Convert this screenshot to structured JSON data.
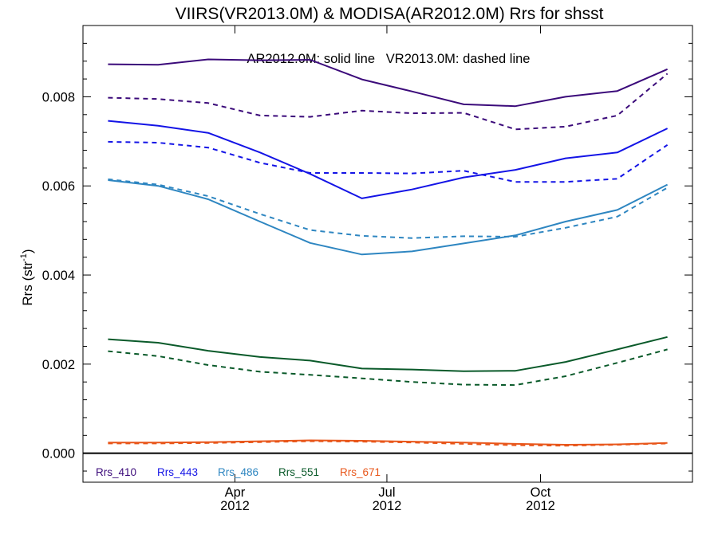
{
  "chart_data": {
    "type": "line",
    "title": "VIIRS(VR2013.0M) & MODISA(AR2012.0M)  Rrs for shsst",
    "annotation": "AR2012.0M: solid line   VR2013.0M: dashed line",
    "ylabel": "Rrs (str",
    "ylabel_sup": "-1",
    "ylabel_close": ")",
    "ylim": [
      -0.00065,
      0.0096
    ],
    "yticks": [
      {
        "value": 0.0,
        "label": "0.000"
      },
      {
        "value": 0.002,
        "label": "0.002"
      },
      {
        "value": 0.004,
        "label": "0.004"
      },
      {
        "value": 0.006,
        "label": "0.006"
      },
      {
        "value": 0.008,
        "label": "0.008"
      }
    ],
    "xlim": [
      "2012-01-01",
      "2012-12-31"
    ],
    "x": [
      "2012-01-16",
      "2012-02-15",
      "2012-03-16",
      "2012-04-16",
      "2012-05-16",
      "2012-06-16",
      "2012-07-16",
      "2012-08-16",
      "2012-09-16",
      "2012-10-16",
      "2012-11-16",
      "2012-12-16"
    ],
    "xticks": [
      {
        "date": "2012-04-01",
        "month": "Apr",
        "year": "2012"
      },
      {
        "date": "2012-07-01",
        "month": "Jul",
        "year": "2012"
      },
      {
        "date": "2012-10-01",
        "month": "Oct",
        "year": "2012"
      }
    ],
    "series": [
      {
        "name": "Rrs_410",
        "sensor": "AR2012.0M",
        "style": "solid",
        "color": "#3b0a7a",
        "values": [
          0.00873,
          0.00872,
          0.00884,
          0.00882,
          0.00883,
          0.00839,
          0.00812,
          0.00783,
          0.00779,
          0.008,
          0.00813,
          0.00862
        ]
      },
      {
        "name": "Rrs_410",
        "sensor": "VR2013.0M",
        "style": "dashed",
        "color": "#3b0a7a",
        "values": [
          0.00798,
          0.00795,
          0.00786,
          0.00758,
          0.00755,
          0.00769,
          0.00763,
          0.00764,
          0.00727,
          0.00733,
          0.00758,
          0.00852
        ]
      },
      {
        "name": "Rrs_443",
        "sensor": "AR2012.0M",
        "style": "solid",
        "color": "#1414e6",
        "values": [
          0.00746,
          0.00735,
          0.00719,
          0.00675,
          0.00627,
          0.00572,
          0.00592,
          0.00619,
          0.00636,
          0.00662,
          0.00675,
          0.00729
        ]
      },
      {
        "name": "Rrs_443",
        "sensor": "VR2013.0M",
        "style": "dashed",
        "color": "#1414e6",
        "values": [
          0.00699,
          0.00697,
          0.00686,
          0.00652,
          0.00629,
          0.00629,
          0.00628,
          0.00634,
          0.00609,
          0.00609,
          0.00616,
          0.00692
        ]
      },
      {
        "name": "Rrs_486",
        "sensor": "AR2012.0M",
        "style": "solid",
        "color": "#2e86c1",
        "values": [
          0.00613,
          0.006,
          0.0057,
          0.0052,
          0.00472,
          0.00446,
          0.00453,
          0.00471,
          0.00489,
          0.0052,
          0.00546,
          0.00603
        ]
      },
      {
        "name": "Rrs_486",
        "sensor": "VR2013.0M",
        "style": "dashed",
        "color": "#2e86c1",
        "values": [
          0.00615,
          0.00603,
          0.00577,
          0.00537,
          0.00501,
          0.00488,
          0.00483,
          0.00487,
          0.00486,
          0.00506,
          0.00531,
          0.00596
        ]
      },
      {
        "name": "Rrs_551",
        "sensor": "AR2012.0M",
        "style": "solid",
        "color": "#0a5a2a",
        "values": [
          0.00256,
          0.00248,
          0.0023,
          0.00216,
          0.00208,
          0.0019,
          0.00188,
          0.00184,
          0.00185,
          0.00205,
          0.00233,
          0.00261
        ]
      },
      {
        "name": "Rrs_551",
        "sensor": "VR2013.0M",
        "style": "dashed",
        "color": "#0a5a2a",
        "values": [
          0.00229,
          0.00218,
          0.00198,
          0.00183,
          0.00176,
          0.00168,
          0.0016,
          0.00154,
          0.00153,
          0.00173,
          0.00203,
          0.00233
        ]
      },
      {
        "name": "Rrs_671",
        "sensor": "AR2012.0M",
        "style": "solid",
        "color": "#e8561a",
        "values": [
          0.00024,
          0.00024,
          0.00025,
          0.00027,
          0.00029,
          0.00028,
          0.00026,
          0.00024,
          0.00021,
          0.00019,
          0.0002,
          0.00023
        ]
      },
      {
        "name": "Rrs_671",
        "sensor": "VR2013.0M",
        "style": "dashed",
        "color": "#e8561a",
        "values": [
          0.00022,
          0.00022,
          0.00023,
          0.00025,
          0.00027,
          0.00026,
          0.00024,
          0.00021,
          0.00018,
          0.00017,
          0.00019,
          0.00022
        ]
      }
    ],
    "legend": {
      "placement": "bottom-left",
      "entries": [
        {
          "label": "Rrs_410",
          "color": "#3b0a7a"
        },
        {
          "label": "Rrs_443",
          "color": "#1414e6"
        },
        {
          "label": "Rrs_486",
          "color": "#2e86c1"
        },
        {
          "label": "Rrs_551",
          "color": "#0a5a2a"
        },
        {
          "label": "Rrs_671",
          "color": "#e8561a"
        }
      ]
    },
    "zero_line": true,
    "grid": false
  }
}
